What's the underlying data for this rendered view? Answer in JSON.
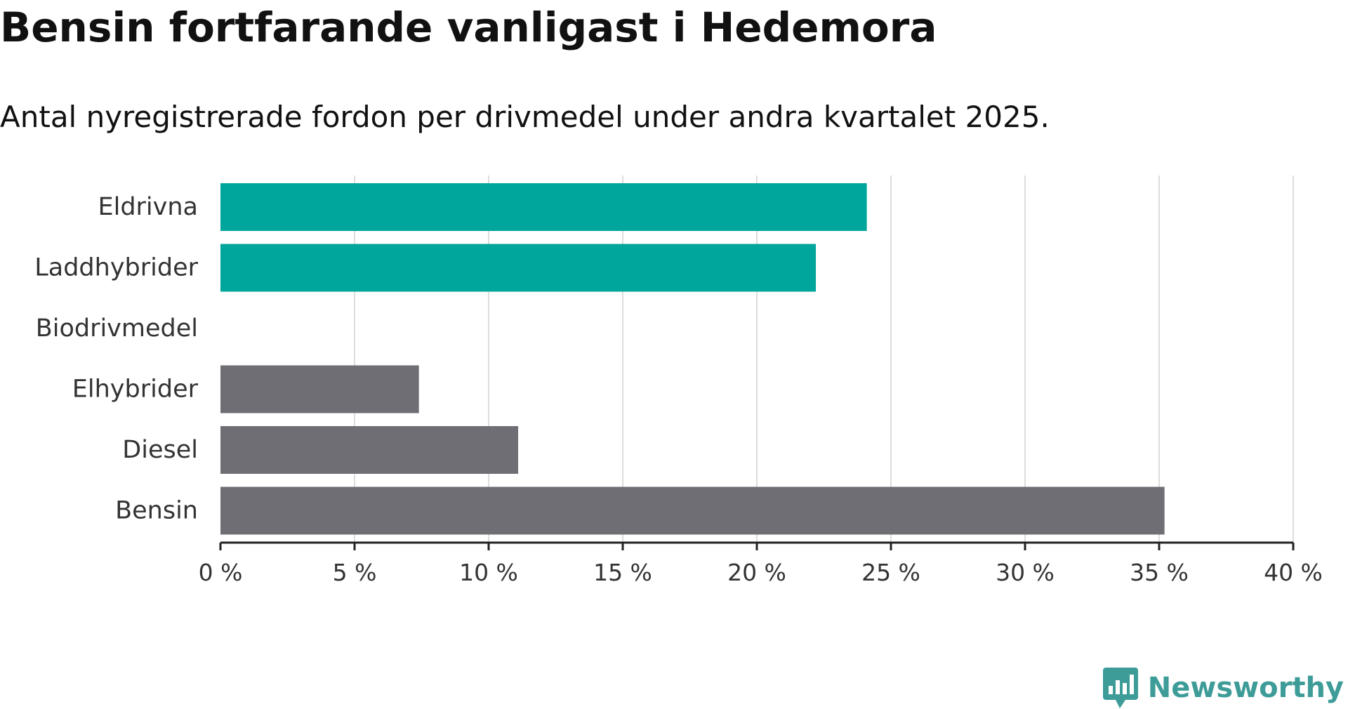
{
  "header": {
    "title": "Bensin fortfarande vanligast i Hedemora",
    "subtitle": "Antal nyregistrerade fordon per drivmedel under andra kvartalet 2025."
  },
  "brand": {
    "name": "Newsworthy",
    "icon": "newsworthy-logo-icon",
    "color": "#3e9c98"
  },
  "colors": {
    "highlight": "#00a59b",
    "neutral": "#6f6e75",
    "grid": "#dddddd",
    "axis": "#222222",
    "label": "#333333"
  },
  "chart_data": {
    "type": "bar",
    "orientation": "horizontal",
    "title": "Bensin fortfarande vanligast i Hedemora",
    "subtitle": "Antal nyregistrerade fordon per drivmedel under andra kvartalet 2025.",
    "categories": [
      "Eldrivna",
      "Laddhybrider",
      "Biodrivmedel",
      "Elhybrider",
      "Diesel",
      "Bensin"
    ],
    "values": [
      24.1,
      22.2,
      0,
      7.4,
      11.1,
      35.2
    ],
    "groups": [
      "highlight",
      "highlight",
      "highlight",
      "neutral",
      "neutral",
      "neutral"
    ],
    "xlim": [
      0,
      40
    ],
    "xticks": [
      0,
      5,
      10,
      15,
      20,
      25,
      30,
      35,
      40
    ],
    "tick_labels": [
      "0 %",
      "5 %",
      "10 %",
      "15 %",
      "20 %",
      "25 %",
      "30 %",
      "35 %",
      "40 %"
    ],
    "grid": true,
    "xlabel": "",
    "ylabel": ""
  }
}
